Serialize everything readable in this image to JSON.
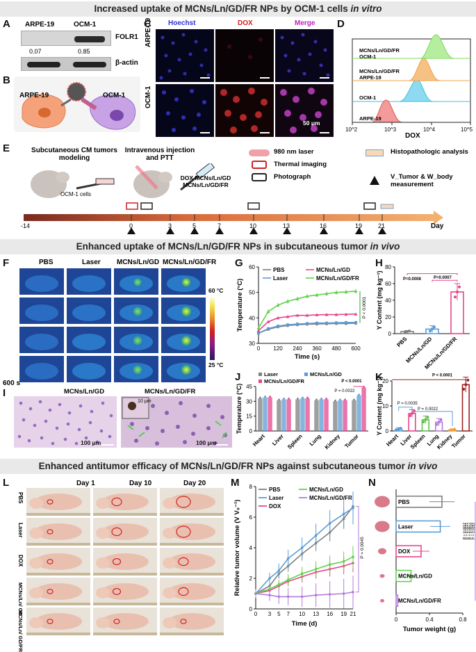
{
  "banners": {
    "top": "Increased uptake of MCNs/Ln/GD/FR NPs by OCM-1 cells",
    "top_it": "in vitro",
    "mid": "Enhanced uptake of MCNs/Ln/GD/FR NPs in subcutaneous tumor",
    "mid_it": "in vivo",
    "bottom": "Enhanced antitumor efficacy of MCNs/Ln/GD/FR NPs against subcutaneous tumor",
    "bottom_it": "in vivo"
  },
  "panel_letters": [
    "A",
    "B",
    "C",
    "D",
    "E",
    "F",
    "G",
    "H",
    "I",
    "J",
    "K",
    "L",
    "M",
    "N"
  ],
  "panelA": {
    "cols": [
      "ARPE-19",
      "OCM-1"
    ],
    "band1": "FOLR1",
    "band2": "β-actin",
    "values": [
      "0.07",
      "0.85"
    ]
  },
  "panelB": {
    "cell1": "ARPE-19",
    "cell2": "OCM-1"
  },
  "panelC": {
    "cols": [
      "Hoechst",
      "DOX",
      "Merge"
    ],
    "rows": [
      "ARPE-19",
      "OCM-1"
    ],
    "scale": "50 μm"
  },
  "panelD": {
    "labels": [
      "MCNs/Ln/GD/FR\nOCM-1",
      "MCNs/Ln/GD/FR\nARPE-19",
      "OCM-1",
      "ARPE-19"
    ],
    "xlabel": "DOX",
    "ticks": [
      "10^2",
      "10^3",
      "10^4",
      "10^5"
    ]
  },
  "panelE": {
    "step1": "Subcutaneous CM tumors modeling",
    "step2": "Intravenous injection and PTT",
    "cells": "OCM-1 cells",
    "groups": "DOX MCNs/Ln/GD MCNs/Ln/GD/FR",
    "legend": [
      "980 nm laser",
      "Thermal imaging",
      "Photograph",
      "Histopathologic analysis",
      "V_Tumor & W_body measurement"
    ],
    "days": [
      "-14",
      "0",
      "3",
      "5",
      "7",
      "10",
      "13",
      "16",
      "19",
      "21"
    ],
    "axis": "Day"
  },
  "panelF": {
    "cols": [
      "PBS",
      "Laser",
      "MCNs/Ln/GD",
      "MCNs/Ln/GD/FR"
    ],
    "time": "600 s",
    "cbar_max": "60 °C",
    "cbar_min": "25 °C"
  },
  "panelI": {
    "left": "MCNs/Ln/GD",
    "right": "MCNs/Ln/GD/FR",
    "scale": "100 μm",
    "inset": "10 μm"
  },
  "panelK": {
    "p": [
      "P = 0.0035",
      "P = 0.0022",
      "P < 0.0001"
    ]
  },
  "panelL": {
    "days": [
      "Day 1",
      "Day 10",
      "Day 20"
    ],
    "rows": [
      "PBS",
      "Laser",
      "DOX",
      "MCNs/Ln/ GD",
      "MCNs/Ln/ GD/FR"
    ]
  },
  "chart_data": [
    {
      "id": "G",
      "type": "line",
      "xlabel": "Time (s)",
      "ylabel": "Temperature (°C)",
      "x": [
        0,
        60,
        120,
        180,
        240,
        300,
        360,
        420,
        480,
        540,
        600
      ],
      "xlim": [
        0,
        600
      ],
      "ylim": [
        30,
        60
      ],
      "series": [
        {
          "name": "PBS",
          "values": [
            34,
            35.5,
            36.5,
            37,
            37.3,
            37.5,
            37.6,
            37.7,
            37.8,
            37.8,
            37.9
          ]
        },
        {
          "name": "Laser",
          "values": [
            34,
            35.8,
            36.8,
            37.3,
            37.6,
            37.8,
            38,
            38,
            38.1,
            38.2,
            38.2
          ]
        },
        {
          "name": "MCNs/Ln/GD",
          "values": [
            35,
            38.5,
            40,
            40.5,
            41,
            41,
            41.2,
            41.3,
            41.3,
            41.4,
            41.5
          ]
        },
        {
          "name": "MCNs/Ln/GD/FR",
          "values": [
            36,
            42.5,
            45,
            46.5,
            47.5,
            48.5,
            49,
            49.5,
            50,
            50.2,
            50.5
          ]
        }
      ],
      "annotation": "P < 0.0001"
    },
    {
      "id": "H",
      "type": "bar",
      "ylabel": "Y Content (mg kg⁻¹)",
      "categories": [
        "PBS",
        "MCNs/Ln/GD",
        "MCNs/Ln/GD/FR"
      ],
      "values": [
        2.5,
        5.5,
        50
      ],
      "errors": [
        1.2,
        4,
        10
      ],
      "ylim": [
        0,
        80
      ],
      "p": [
        "P=0.0008",
        "P=0.0007"
      ]
    },
    {
      "id": "J",
      "type": "bar",
      "ylabel": "Temperature (°C)",
      "categories": [
        "Heart",
        "Liver",
        "Spleen",
        "Lung",
        "Kidney",
        "Tumor"
      ],
      "series": [
        {
          "name": "Laser",
          "values": [
            33,
            31,
            32,
            31,
            30,
            31
          ]
        },
        {
          "name": "MCNs/Ln/GD",
          "values": [
            34,
            32,
            33,
            32,
            31,
            36
          ]
        },
        {
          "name": "MCNs/Ln/GD/FR",
          "values": [
            34,
            32,
            33,
            32,
            31,
            44
          ]
        }
      ],
      "ylim": [
        0,
        45
      ],
      "p": [
        "P = 0.0022",
        "P < 0.0001"
      ]
    },
    {
      "id": "K",
      "type": "bar",
      "ylabel": "Y Content (mg kg⁻¹)",
      "categories": [
        "Heart",
        "Liver",
        "Spleen",
        "Lung",
        "Kidney",
        "Tumor"
      ],
      "values": [
        0.7,
        7,
        4.5,
        3.5,
        0.5,
        18.5
      ],
      "errors": [
        0.6,
        1.5,
        1.5,
        1.5,
        0.3,
        3
      ],
      "ylim": [
        0,
        20
      ]
    },
    {
      "id": "M",
      "type": "line",
      "xlabel": "Time (d)",
      "ylabel": "Relative tumor volume (V V₀⁻¹)",
      "x": [
        0,
        3,
        5,
        7,
        10,
        13,
        16,
        19,
        21
      ],
      "xlim": [
        0,
        21
      ],
      "ylim": [
        0,
        8
      ],
      "series": [
        {
          "name": "PBS",
          "values": [
            1,
            1.5,
            2.3,
            2.8,
            3.6,
            4.3,
            5,
            5.9,
            6.7
          ]
        },
        {
          "name": "Laser",
          "values": [
            1,
            2,
            2.5,
            3.3,
            4,
            4.8,
            5.6,
            6.2,
            6.6
          ]
        },
        {
          "name": "DOX",
          "values": [
            1,
            1.2,
            1.5,
            1.8,
            2.1,
            2.4,
            2.6,
            2.8,
            3
          ]
        },
        {
          "name": "MCNs/Ln/GD",
          "values": [
            1,
            1.3,
            1.6,
            1.9,
            2.3,
            2.6,
            2.9,
            3.1,
            3.4
          ]
        },
        {
          "name": "MCNs/Ln/GD/FR",
          "values": [
            1,
            0.9,
            0.8,
            0.8,
            0.8,
            0.9,
            0.95,
            1,
            1.1
          ]
        }
      ],
      "annotation": "P = 0.0045"
    },
    {
      "id": "N",
      "type": "bar",
      "orientation": "horizontal",
      "xlabel": "Tumor weight (g)",
      "categories": [
        "PBS",
        "Laser",
        "DOX",
        "MCNs/Ln/GD",
        "MCNs/Ln/GD/FR"
      ],
      "values": [
        0.55,
        0.53,
        0.3,
        0.18,
        0.02
      ],
      "errors": [
        0.15,
        0.12,
        0.1,
        0.08,
        0.01
      ],
      "xlim": [
        0,
        0.8
      ],
      "p": [
        "P = 0.0012",
        "P = 0.0221",
        "P = 0.0077",
        "P = 0.0016",
        "P = 0.0262"
      ]
    }
  ],
  "colors": {
    "pbs": "#7f7f7f",
    "laser": "#5b9bd5",
    "gd": "#e6458c",
    "fr": "#5fd24a",
    "red": "#c0504d",
    "purple": "#b67ad8"
  }
}
